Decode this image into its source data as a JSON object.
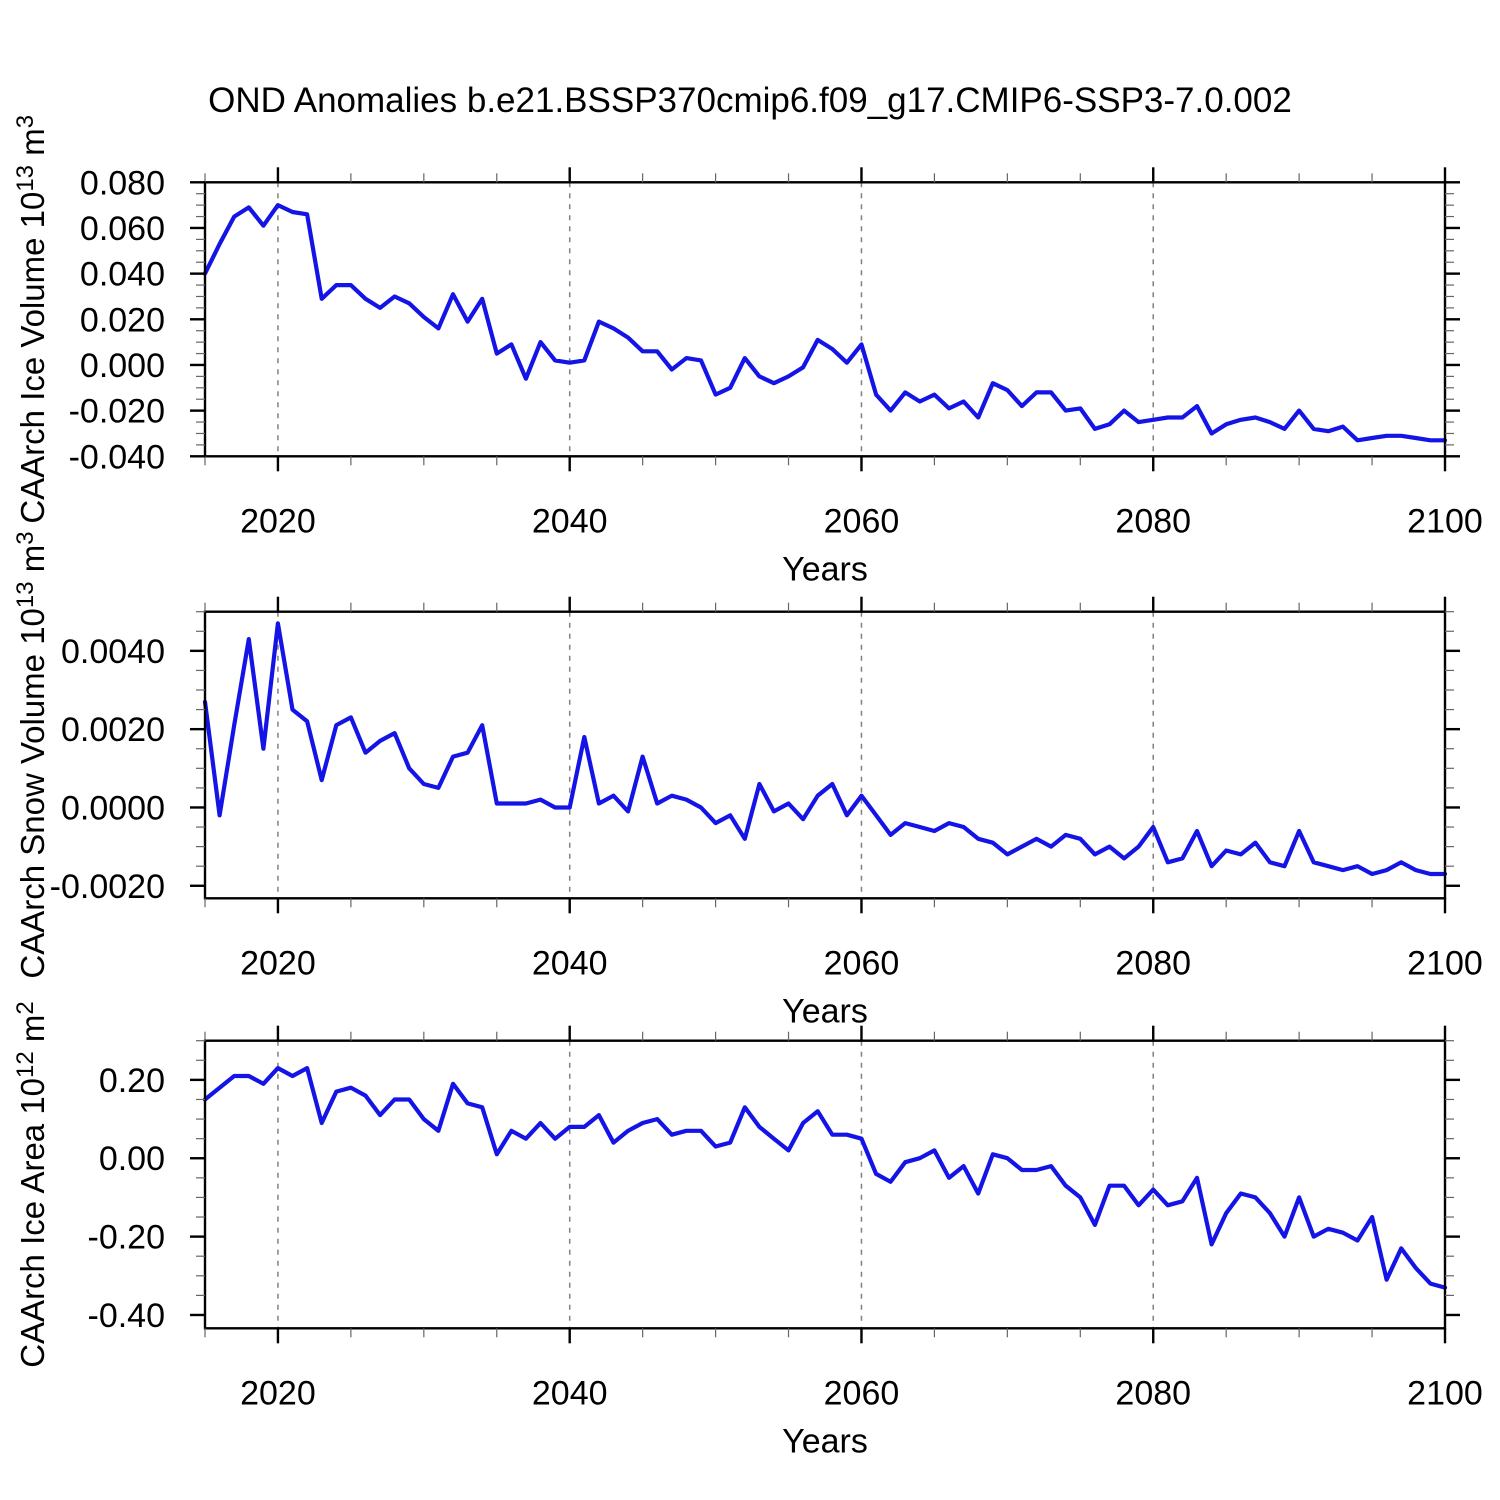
{
  "title": "OND Anomalies b.e21.BSSP370cmip6.f09_g17.CMIP6-SSP3-7.0.002",
  "xlabel": "Years",
  "line_color": "#1414e6",
  "grid_color": "#808080",
  "years": [
    2015,
    2016,
    2017,
    2018,
    2019,
    2020,
    2021,
    2022,
    2023,
    2024,
    2025,
    2026,
    2027,
    2028,
    2029,
    2030,
    2031,
    2032,
    2033,
    2034,
    2035,
    2036,
    2037,
    2038,
    2039,
    2040,
    2041,
    2042,
    2043,
    2044,
    2045,
    2046,
    2047,
    2048,
    2049,
    2050,
    2051,
    2052,
    2053,
    2054,
    2055,
    2056,
    2057,
    2058,
    2059,
    2060,
    2061,
    2062,
    2063,
    2064,
    2065,
    2066,
    2067,
    2068,
    2069,
    2070,
    2071,
    2072,
    2073,
    2074,
    2075,
    2076,
    2077,
    2078,
    2079,
    2080,
    2081,
    2082,
    2083,
    2084,
    2085,
    2086,
    2087,
    2088,
    2089,
    2090,
    2091,
    2092,
    2093,
    2094,
    2095,
    2096,
    2097,
    2098,
    2099,
    2100
  ],
  "xticks": {
    "values": [
      2020,
      2040,
      2060,
      2080,
      2100
    ],
    "labels": [
      "2020",
      "2040",
      "2060",
      "2080",
      "2100"
    ],
    "minor_step": 5
  },
  "grid_years": [
    2020,
    2040,
    2060,
    2080
  ],
  "chart_data": [
    {
      "type": "line",
      "name": "CAArch Ice Volume",
      "ylabel_text": "CAArch Ice Volume 10^13 m^3",
      "ylabel_parts": [
        [
          "CAArch Ice Volume 10",
          0
        ],
        [
          "13",
          1
        ],
        [
          " m",
          0
        ],
        [
          "3",
          1
        ]
      ],
      "xlabel": "Years",
      "ylim": [
        -0.04,
        0.08
      ],
      "yticks": {
        "values": [
          0.08,
          0.06,
          0.04,
          0.02,
          0.0,
          -0.02,
          -0.04
        ],
        "labels": [
          "0.080",
          "0.060",
          "0.040",
          "0.020",
          "0.000",
          "-0.020",
          "-0.040"
        ]
      },
      "ytick_minor_step": 0.005,
      "grid": "dashed-vertical",
      "legend": "none",
      "values": [
        0.04,
        0.053,
        0.065,
        0.069,
        0.061,
        0.07,
        0.067,
        0.066,
        0.029,
        0.035,
        0.035,
        0.029,
        0.025,
        0.03,
        0.027,
        0.021,
        0.016,
        0.031,
        0.019,
        0.029,
        0.005,
        0.009,
        -0.006,
        0.01,
        0.002,
        0.001,
        0.002,
        0.019,
        0.016,
        0.012,
        0.006,
        0.006,
        -0.002,
        0.003,
        0.002,
        -0.013,
        -0.01,
        0.003,
        -0.005,
        -0.008,
        -0.005,
        -0.001,
        0.011,
        0.007,
        0.001,
        0.009,
        -0.013,
        -0.02,
        -0.012,
        -0.016,
        -0.013,
        -0.019,
        -0.016,
        -0.023,
        -0.008,
        -0.011,
        -0.018,
        -0.012,
        -0.012,
        -0.02,
        -0.019,
        -0.028,
        -0.026,
        -0.02,
        -0.025,
        -0.024,
        -0.023,
        -0.023,
        -0.018,
        -0.03,
        -0.026,
        -0.024,
        -0.023,
        -0.025,
        -0.028,
        -0.02,
        -0.028,
        -0.029,
        -0.027,
        -0.033,
        -0.032,
        -0.031,
        -0.031,
        -0.032,
        -0.033,
        -0.033
      ]
    },
    {
      "type": "line",
      "name": "CAArch Snow Volume",
      "ylabel_text": "CAArch Snow Volume 10^13 m^3",
      "ylabel_parts": [
        [
          "CAArch Snow Volume 10",
          0
        ],
        [
          "13",
          1
        ],
        [
          " m",
          0
        ],
        [
          "3",
          1
        ]
      ],
      "xlabel": "Years",
      "ylim": [
        -0.00232,
        0.005
      ],
      "yticks": {
        "values": [
          0.004,
          0.002,
          0.0,
          -0.002
        ],
        "labels": [
          "0.0040",
          "0.0020",
          "0.0000",
          "-0.0020"
        ]
      },
      "ytick_minor_step": 0.0005,
      "grid": "dashed-vertical",
      "legend": "none",
      "values": [
        0.0027,
        -0.0002,
        0.0021,
        0.0043,
        0.0015,
        0.0047,
        0.0025,
        0.0022,
        0.0007,
        0.0021,
        0.0023,
        0.0014,
        0.0017,
        0.0019,
        0.001,
        0.0006,
        0.0005,
        0.0013,
        0.0014,
        0.0021,
        0.0001,
        0.0001,
        0.0001,
        0.0002,
        0.0,
        0.0,
        0.0018,
        0.0001,
        0.0003,
        -0.0001,
        0.0013,
        0.0001,
        0.0003,
        0.0002,
        0.0,
        -0.0004,
        -0.0002,
        -0.0008,
        0.0006,
        -0.0001,
        0.0001,
        -0.0003,
        0.0003,
        0.0006,
        -0.0002,
        0.0003,
        -0.0002,
        -0.0007,
        -0.0004,
        -0.0005,
        -0.0006,
        -0.0004,
        -0.0005,
        -0.0008,
        -0.0009,
        -0.0012,
        -0.001,
        -0.0008,
        -0.001,
        -0.0007,
        -0.0008,
        -0.0012,
        -0.001,
        -0.0013,
        -0.001,
        -0.0005,
        -0.0014,
        -0.0013,
        -0.0006,
        -0.0015,
        -0.0011,
        -0.0012,
        -0.0009,
        -0.0014,
        -0.0015,
        -0.0006,
        -0.0014,
        -0.0015,
        -0.0016,
        -0.0015,
        -0.0017,
        -0.0016,
        -0.0014,
        -0.0016,
        -0.0017,
        -0.0017
      ]
    },
    {
      "type": "line",
      "name": "CAArch Ice Area",
      "ylabel_text": "CAArch Ice Area 10^12 m^2",
      "ylabel_parts": [
        [
          "CAArch Ice Area 10",
          0
        ],
        [
          "12",
          1
        ],
        [
          " m",
          0
        ],
        [
          "2",
          1
        ]
      ],
      "xlabel": "Years",
      "ylim": [
        -0.434,
        0.3
      ],
      "yticks": {
        "values": [
          0.2,
          0.0,
          -0.2,
          -0.4
        ],
        "labels": [
          "0.20",
          "0.00",
          "-0.20",
          "-0.40"
        ]
      },
      "ytick_minor_step": 0.05,
      "grid": "dashed-vertical",
      "legend": "none",
      "values": [
        0.15,
        0.18,
        0.21,
        0.21,
        0.19,
        0.23,
        0.21,
        0.23,
        0.09,
        0.17,
        0.18,
        0.16,
        0.11,
        0.15,
        0.15,
        0.1,
        0.07,
        0.19,
        0.14,
        0.13,
        0.01,
        0.07,
        0.05,
        0.09,
        0.05,
        0.08,
        0.08,
        0.11,
        0.04,
        0.07,
        0.09,
        0.1,
        0.06,
        0.07,
        0.07,
        0.03,
        0.04,
        0.13,
        0.08,
        0.05,
        0.02,
        0.09,
        0.12,
        0.06,
        0.06,
        0.05,
        -0.04,
        -0.06,
        -0.01,
        0.0,
        0.02,
        -0.05,
        -0.02,
        -0.09,
        0.01,
        0.0,
        -0.03,
        -0.03,
        -0.02,
        -0.07,
        -0.1,
        -0.17,
        -0.07,
        -0.07,
        -0.12,
        -0.08,
        -0.12,
        -0.11,
        -0.05,
        -0.22,
        -0.14,
        -0.09,
        -0.1,
        -0.14,
        -0.2,
        -0.1,
        -0.2,
        -0.18,
        -0.19,
        -0.21,
        -0.15,
        -0.31,
        -0.23,
        -0.28,
        -0.32,
        -0.33
      ]
    }
  ]
}
